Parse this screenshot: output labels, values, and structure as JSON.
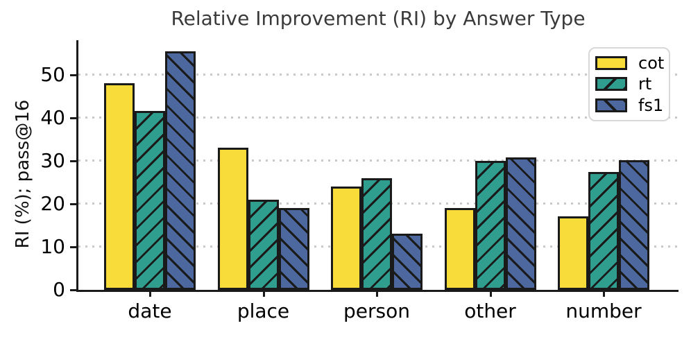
{
  "chart_data": {
    "type": "bar",
    "title": "Relative Improvement (RI) by Answer Type",
    "xlabel": "",
    "ylabel": "RI (%); pass@16",
    "categories": [
      "date",
      "place",
      "person",
      "other",
      "number"
    ],
    "series": [
      {
        "name": "cot",
        "color": "#F8DC3A",
        "hatch": "none",
        "values": [
          48,
          33,
          24,
          19,
          17
        ]
      },
      {
        "name": "rt",
        "color": "#2F9E8F",
        "hatch": "/",
        "values": [
          41.5,
          21,
          26,
          29.9,
          27.4
        ]
      },
      {
        "name": "fs1",
        "color": "#4D689F",
        "hatch": "\\",
        "values": [
          55.5,
          19,
          13,
          30.7,
          30.1
        ]
      }
    ],
    "ylim": [
      0,
      58
    ],
    "yticks": [
      0,
      10,
      20,
      30,
      40,
      50
    ],
    "grid": "horizontal-dotted",
    "gridline_color": "#c9c9c9",
    "bar_edge_color": "#1a1a1a",
    "legend_position": "upper right"
  }
}
